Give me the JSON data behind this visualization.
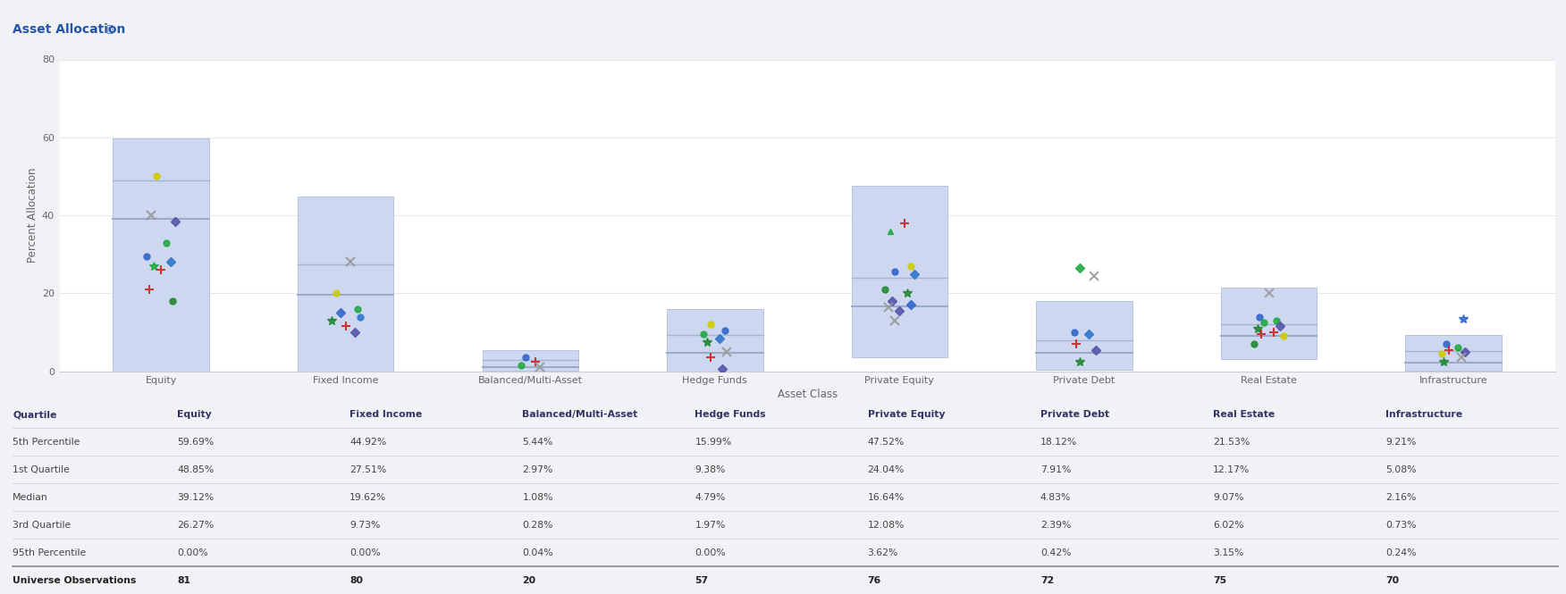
{
  "title": "Asset Allocation",
  "info_icon": "ⓘ",
  "xlabel": "Asset Class",
  "ylabel": "Percent Allocation",
  "categories": [
    "Equity",
    "Fixed Income",
    "Balanced/Multi-Asset",
    "Hedge Funds",
    "Private Equity",
    "Private Debt",
    "Real Estate",
    "Infrastructure"
  ],
  "percentiles": {
    "p5": [
      59.69,
      44.92,
      5.44,
      15.99,
      47.52,
      18.12,
      21.53,
      9.21
    ],
    "p25": [
      48.85,
      27.51,
      2.97,
      9.38,
      24.04,
      7.91,
      12.17,
      5.08
    ],
    "p50": [
      39.12,
      19.62,
      1.08,
      4.79,
      16.64,
      4.83,
      9.07,
      2.16
    ],
    "p75": [
      26.27,
      9.73,
      0.28,
      1.97,
      12.08,
      2.39,
      6.02,
      0.73
    ],
    "p95": [
      0.0,
      0.0,
      0.04,
      0.0,
      3.62,
      0.42,
      3.15,
      0.24
    ]
  },
  "obs": [
    81,
    80,
    20,
    57,
    76,
    72,
    75,
    70
  ],
  "ylim": [
    0,
    80
  ],
  "yticks": [
    0,
    20,
    40,
    60,
    80
  ],
  "box_color": "#cdd8f0",
  "box_edge_color": "#b0bedd",
  "median_line_color": "#9aaac8",
  "q25_line_color": "#9aaac8",
  "bg_color": "#ffffff",
  "outer_bg": "#f0f2f5",
  "header_bg": "#dde3ee",
  "header_text_color": "#2255aa",
  "grid_color": "#e8e8e8",
  "axis_label_color": "#666666",
  "tick_label_color": "#666666",
  "table_header_color": "#333366",
  "table_text_color": "#444444",
  "table_obs_color": "#222222",
  "table_sep_color": "#cccccc",
  "table_obs_line_color": "#888888",
  "dots": {
    "Equity": [
      {
        "v": 50.0,
        "color": "#cccc00",
        "marker": "o",
        "jitter": -0.05
      },
      {
        "v": 40.0,
        "color": "#999999",
        "marker": "x",
        "jitter": -0.1
      },
      {
        "v": 38.5,
        "color": "#5555aa",
        "marker": "D",
        "jitter": 0.15
      },
      {
        "v": 33.0,
        "color": "#22aa44",
        "marker": "o",
        "jitter": 0.05
      },
      {
        "v": 29.5,
        "color": "#3366cc",
        "marker": "o",
        "jitter": -0.15
      },
      {
        "v": 28.0,
        "color": "#3377cc",
        "marker": "D",
        "jitter": 0.1
      },
      {
        "v": 27.0,
        "color": "#22aa44",
        "marker": "*",
        "jitter": -0.08
      },
      {
        "v": 26.0,
        "color": "#cc2222",
        "marker": "+",
        "jitter": 0.0
      },
      {
        "v": 21.0,
        "color": "#cc2222",
        "marker": "+",
        "jitter": -0.12
      },
      {
        "v": 18.0,
        "color": "#228833",
        "marker": "o",
        "jitter": 0.12
      }
    ],
    "Fixed Income": [
      {
        "v": 28.0,
        "color": "#999999",
        "marker": "x",
        "jitter": 0.05
      },
      {
        "v": 20.0,
        "color": "#cccc00",
        "marker": "o",
        "jitter": -0.1
      },
      {
        "v": 16.0,
        "color": "#22aa44",
        "marker": "o",
        "jitter": 0.12
      },
      {
        "v": 15.0,
        "color": "#3366cc",
        "marker": "D",
        "jitter": -0.05
      },
      {
        "v": 14.0,
        "color": "#3377cc",
        "marker": "o",
        "jitter": 0.15
      },
      {
        "v": 13.0,
        "color": "#228833",
        "marker": "*",
        "jitter": -0.15
      },
      {
        "v": 11.5,
        "color": "#cc2222",
        "marker": "+",
        "jitter": 0.0
      },
      {
        "v": 10.0,
        "color": "#5555aa",
        "marker": "D",
        "jitter": 0.1
      }
    ],
    "Balanced/Multi-Asset": [
      {
        "v": 3.5,
        "color": "#3366cc",
        "marker": "o",
        "jitter": -0.05
      },
      {
        "v": 2.5,
        "color": "#cc2222",
        "marker": "+",
        "jitter": 0.05
      },
      {
        "v": 1.5,
        "color": "#22aa44",
        "marker": "o",
        "jitter": -0.1
      },
      {
        "v": 1.0,
        "color": "#999999",
        "marker": "x",
        "jitter": 0.1
      }
    ],
    "Hedge Funds": [
      {
        "v": 12.0,
        "color": "#cccc00",
        "marker": "o",
        "jitter": -0.05
      },
      {
        "v": 10.5,
        "color": "#3366cc",
        "marker": "o",
        "jitter": 0.1
      },
      {
        "v": 9.5,
        "color": "#22aa44",
        "marker": "o",
        "jitter": -0.12
      },
      {
        "v": 8.5,
        "color": "#3377cc",
        "marker": "D",
        "jitter": 0.05
      },
      {
        "v": 7.5,
        "color": "#228833",
        "marker": "*",
        "jitter": -0.08
      },
      {
        "v": 5.0,
        "color": "#999999",
        "marker": "x",
        "jitter": 0.12
      },
      {
        "v": 3.5,
        "color": "#cc2222",
        "marker": "+",
        "jitter": -0.05
      },
      {
        "v": 0.5,
        "color": "#5555aa",
        "marker": "D",
        "jitter": 0.08
      }
    ],
    "Private Equity": [
      {
        "v": 38.0,
        "color": "#cc2222",
        "marker": "+",
        "jitter": 0.05
      },
      {
        "v": 36.0,
        "color": "#22aa44",
        "marker": "^",
        "jitter": -0.1
      },
      {
        "v": 27.0,
        "color": "#cccc00",
        "marker": "o",
        "jitter": 0.12
      },
      {
        "v": 25.5,
        "color": "#3366cc",
        "marker": "o",
        "jitter": -0.05
      },
      {
        "v": 25.0,
        "color": "#3377cc",
        "marker": "D",
        "jitter": 0.15
      },
      {
        "v": 21.0,
        "color": "#228833",
        "marker": "o",
        "jitter": -0.15
      },
      {
        "v": 20.0,
        "color": "#228833",
        "marker": "*",
        "jitter": 0.08
      },
      {
        "v": 18.0,
        "color": "#5555aa",
        "marker": "D",
        "jitter": -0.08
      },
      {
        "v": 17.0,
        "color": "#3366cc",
        "marker": "D",
        "jitter": 0.12
      },
      {
        "v": 16.5,
        "color": "#999999",
        "marker": "x",
        "jitter": -0.12
      },
      {
        "v": 15.5,
        "color": "#5555aa",
        "marker": "D",
        "jitter": 0.0
      },
      {
        "v": 13.0,
        "color": "#999999",
        "marker": "x",
        "jitter": -0.05
      }
    ],
    "Private Debt": [
      {
        "v": 26.5,
        "color": "#22aa44",
        "marker": "D",
        "jitter": -0.05
      },
      {
        "v": 24.5,
        "color": "#999999",
        "marker": "x",
        "jitter": 0.1
      },
      {
        "v": 10.0,
        "color": "#3366cc",
        "marker": "o",
        "jitter": -0.1
      },
      {
        "v": 9.5,
        "color": "#3377cc",
        "marker": "D",
        "jitter": 0.05
      },
      {
        "v": 7.0,
        "color": "#cc2222",
        "marker": "+",
        "jitter": -0.08
      },
      {
        "v": 5.5,
        "color": "#5555aa",
        "marker": "D",
        "jitter": 0.12
      },
      {
        "v": 2.5,
        "color": "#228833",
        "marker": "*",
        "jitter": -0.05
      }
    ],
    "Real Estate": [
      {
        "v": 20.0,
        "color": "#999999",
        "marker": "x",
        "jitter": 0.0
      },
      {
        "v": 14.0,
        "color": "#3366cc",
        "marker": "o",
        "jitter": -0.1
      },
      {
        "v": 13.0,
        "color": "#22aa44",
        "marker": "o",
        "jitter": 0.08
      },
      {
        "v": 12.5,
        "color": "#22aa44",
        "marker": "o",
        "jitter": -0.05
      },
      {
        "v": 11.5,
        "color": "#5555aa",
        "marker": "D",
        "jitter": 0.12
      },
      {
        "v": 11.0,
        "color": "#228833",
        "marker": "*",
        "jitter": -0.12
      },
      {
        "v": 10.0,
        "color": "#cc2222",
        "marker": "+",
        "jitter": 0.05
      },
      {
        "v": 9.5,
        "color": "#cc2222",
        "marker": "+",
        "jitter": -0.08
      },
      {
        "v": 9.0,
        "color": "#cccc00",
        "marker": "o",
        "jitter": 0.15
      },
      {
        "v": 7.0,
        "color": "#228833",
        "marker": "o",
        "jitter": -0.15
      }
    ],
    "Infrastructure": [
      {
        "v": 13.5,
        "color": "#3366cc",
        "marker": "*",
        "jitter": 0.1
      },
      {
        "v": 7.0,
        "color": "#3366cc",
        "marker": "o",
        "jitter": -0.08
      },
      {
        "v": 6.0,
        "color": "#22aa44",
        "marker": "o",
        "jitter": 0.05
      },
      {
        "v": 5.5,
        "color": "#cc2222",
        "marker": "+",
        "jitter": -0.05
      },
      {
        "v": 5.0,
        "color": "#5555aa",
        "marker": "D",
        "jitter": 0.12
      },
      {
        "v": 4.5,
        "color": "#cccc00",
        "marker": "o",
        "jitter": -0.12
      },
      {
        "v": 3.5,
        "color": "#999999",
        "marker": "x",
        "jitter": 0.08
      },
      {
        "v": 2.5,
        "color": "#228833",
        "marker": "*",
        "jitter": -0.1
      }
    ]
  }
}
